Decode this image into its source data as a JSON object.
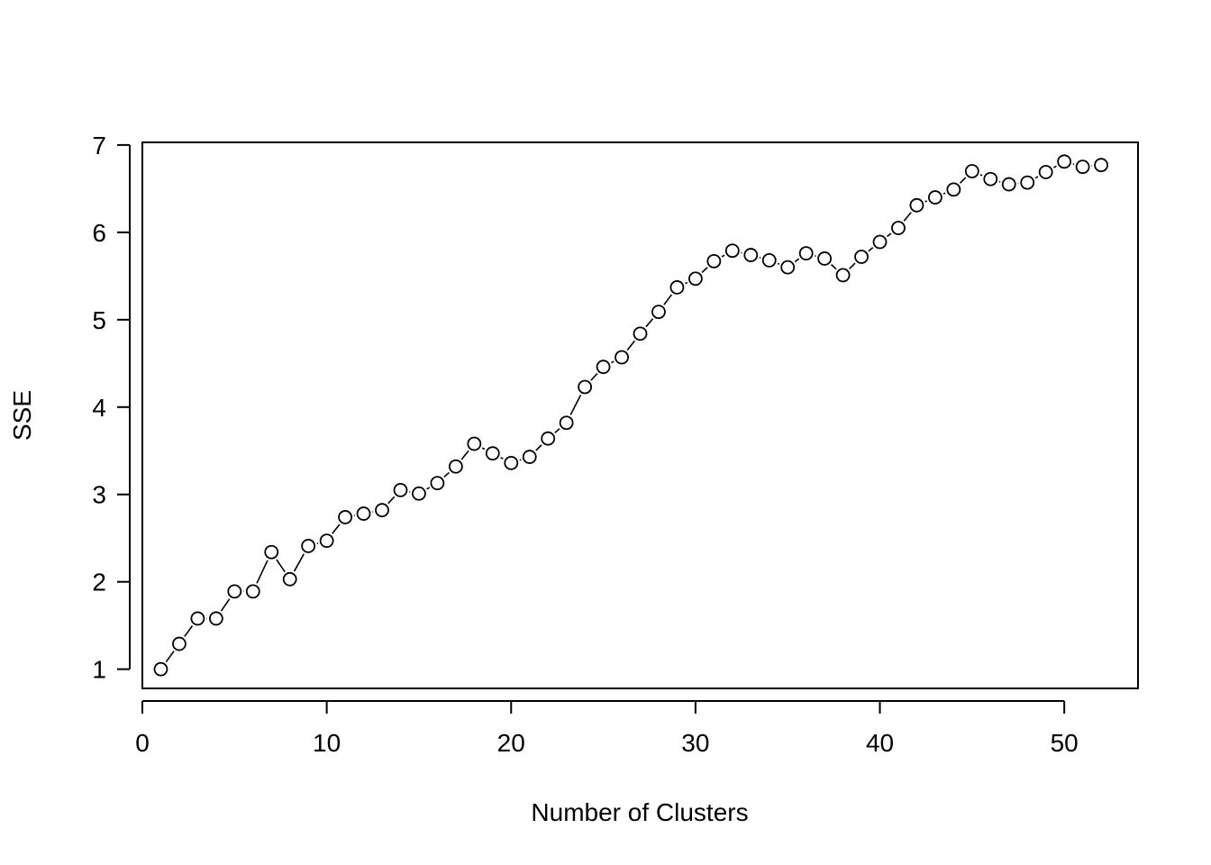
{
  "chart_data": {
    "type": "line",
    "title": "",
    "xlabel": "Number of Clusters",
    "ylabel": "SSE",
    "xlim": [
      0,
      54
    ],
    "ylim": [
      0.78,
      7.03
    ],
    "xticks": [
      0,
      10,
      20,
      30,
      40,
      50
    ],
    "yticks": [
      1,
      2,
      3,
      4,
      5,
      6,
      7
    ],
    "grid": false,
    "legend": "none",
    "marker": "open-circle",
    "series": [
      {
        "x": [
          1,
          2,
          3,
          4,
          5,
          6,
          7,
          8,
          9,
          10,
          11,
          12,
          13,
          14,
          15,
          16,
          17,
          18,
          19,
          20,
          21,
          22,
          23,
          24,
          25,
          26,
          27,
          28,
          29,
          30,
          31,
          32,
          33,
          34,
          35,
          36,
          37,
          38,
          39,
          40,
          41,
          42,
          43,
          44,
          45,
          46,
          47,
          48,
          49,
          50,
          51,
          52
        ],
        "values": [
          1.0,
          1.29,
          1.58,
          1.58,
          1.89,
          1.89,
          2.34,
          2.03,
          2.41,
          2.47,
          2.74,
          2.78,
          2.82,
          3.05,
          3.01,
          3.13,
          3.32,
          3.58,
          3.47,
          3.36,
          3.43,
          3.64,
          3.82,
          4.23,
          4.46,
          4.57,
          4.84,
          5.09,
          5.37,
          5.47,
          5.67,
          5.79,
          5.74,
          5.68,
          5.6,
          5.76,
          5.7,
          5.51,
          5.72,
          5.89,
          6.05,
          6.31,
          6.4,
          6.49,
          6.7,
          6.61,
          6.55,
          6.57,
          6.69,
          6.81,
          6.75,
          6.77
        ]
      }
    ]
  }
}
